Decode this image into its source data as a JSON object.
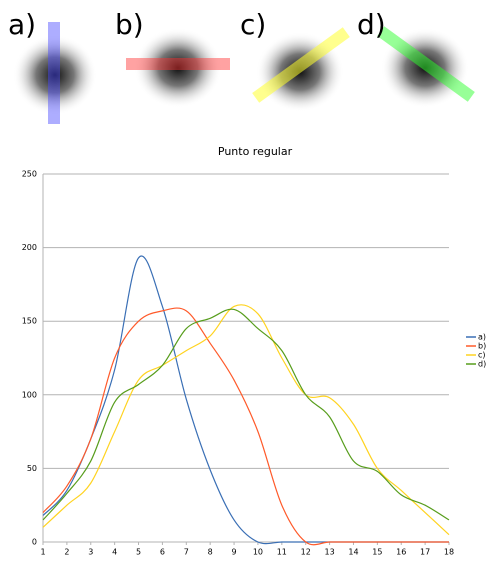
{
  "panels": [
    "a)",
    "b)",
    "c)",
    "d)"
  ],
  "chart_data": {
    "type": "line",
    "title": "Punto regular",
    "x": [
      1,
      2,
      3,
      4,
      5,
      6,
      7,
      8,
      9,
      10,
      11,
      12,
      13,
      14,
      15,
      16,
      17,
      18
    ],
    "xlim": [
      1,
      18
    ],
    "xticks": [
      1,
      2,
      3,
      4,
      5,
      6,
      7,
      8,
      9,
      10,
      11,
      12,
      13,
      14,
      15,
      16,
      17,
      18
    ],
    "ylim": [
      0,
      250
    ],
    "yticks": [
      0,
      50,
      100,
      150,
      200,
      250
    ],
    "grid": true,
    "legend": "right",
    "series": [
      {
        "name": "a)",
        "color": "#3a6fb5",
        "values": [
          18,
          35,
          70,
          117,
          193,
          160,
          97,
          49,
          15,
          0,
          0,
          0,
          0,
          0,
          0,
          0,
          0,
          0
        ]
      },
      {
        "name": "b)",
        "color": "#ff5a2a",
        "values": [
          20,
          38,
          70,
          125,
          150,
          157,
          157,
          135,
          110,
          75,
          25,
          0,
          0,
          0,
          0,
          0,
          0,
          0
        ]
      },
      {
        "name": "c)",
        "color": "#ffd320",
        "values": [
          10,
          25,
          40,
          75,
          110,
          120,
          130,
          140,
          160,
          155,
          125,
          100,
          98,
          80,
          50,
          35,
          20,
          5
        ]
      },
      {
        "name": "d)",
        "color": "#579d1c",
        "values": [
          15,
          33,
          55,
          95,
          107,
          120,
          145,
          152,
          158,
          145,
          130,
          100,
          85,
          55,
          48,
          32,
          25,
          15
        ]
      }
    ]
  }
}
